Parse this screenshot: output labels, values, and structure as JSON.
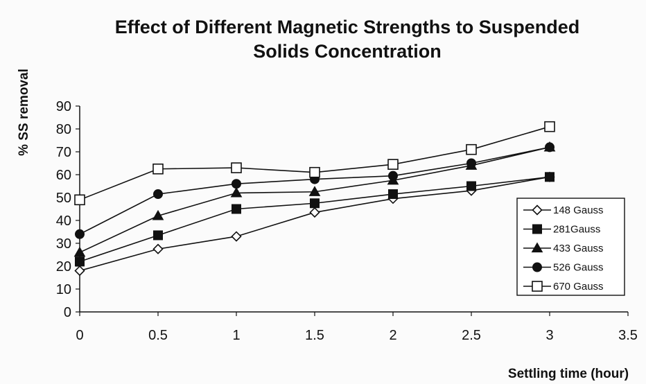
{
  "chart_data": {
    "type": "line",
    "title_line1": "Effect of Different Magnetic Strengths to Suspended",
    "title_line2": "Solids Concentration",
    "xlabel": "Settling time (hour)",
    "ylabel": "% SS removal",
    "xlim": [
      0,
      3.5
    ],
    "ylim": [
      0,
      90
    ],
    "x_ticks": [
      "0",
      "0.5",
      "1",
      "1.5",
      "2",
      "2.5",
      "3",
      "3.5"
    ],
    "y_ticks": [
      "0",
      "10",
      "20",
      "30",
      "40",
      "50",
      "60",
      "70",
      "80",
      "90"
    ],
    "x": [
      0,
      0.5,
      1,
      1.5,
      2,
      2.5,
      3
    ],
    "grid": false,
    "legend_position": "right",
    "series": [
      {
        "name": "148 Gauss",
        "marker": "diamond-open",
        "values": [
          18,
          27.5,
          33,
          43.5,
          49.5,
          53,
          59
        ]
      },
      {
        "name": "281Gauss",
        "marker": "square-filled",
        "values": [
          22,
          33.5,
          45,
          47.5,
          51.5,
          55,
          59
        ]
      },
      {
        "name": "433 Gauss",
        "marker": "triangle-filled",
        "values": [
          26,
          42,
          52,
          52.5,
          57.5,
          64,
          72
        ]
      },
      {
        "name": "526 Gauss",
        "marker": "circle-filled",
        "values": [
          34,
          51.5,
          56,
          58,
          59.5,
          65,
          72
        ]
      },
      {
        "name": "670 Gauss",
        "marker": "square-open",
        "values": [
          49,
          62.5,
          63,
          61,
          64.5,
          71,
          81
        ]
      }
    ]
  }
}
